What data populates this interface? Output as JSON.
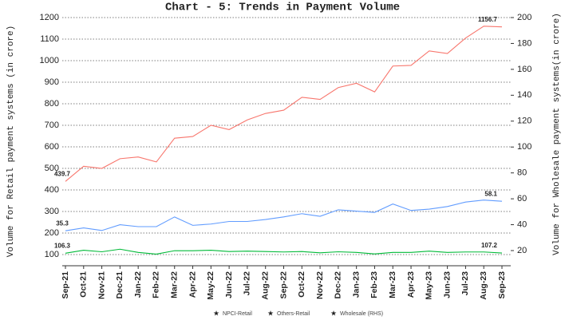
{
  "chart_data": {
    "type": "line",
    "title": "Chart - 5: Trends in Payment Volume",
    "y_label": "Volume for Retail payment systems (in crore)",
    "y2_label": "Volume for Wholesale payment systems(in crore)",
    "categories": [
      "Sep-21",
      "Oct-21",
      "Nov-21",
      "Dec-21",
      "Jan-22",
      "Feb-22",
      "Mar-22",
      "Apr-22",
      "May-22",
      "Jun-22",
      "Jul-22",
      "Aug-22",
      "Sep-22",
      "Oct-22",
      "Nov-22",
      "Dec-22",
      "Jan-23",
      "Feb-23",
      "Mar-23",
      "Apr-23",
      "May-23",
      "Jun-23",
      "Jul-23",
      "Aug-23",
      "Sep-23"
    ],
    "series": [
      {
        "name": "NPCI-Retail",
        "color": "#f8766d",
        "axis": "y",
        "values": [
          439.7,
          510,
          500,
          545,
          553,
          530,
          640,
          648,
          700,
          680,
          725,
          755,
          770,
          830,
          820,
          875,
          895,
          855,
          975,
          978,
          1045,
          1033,
          1105,
          1160,
          1156.7
        ],
        "value_labels": [
          "439.7",
          null,
          null,
          null,
          null,
          null,
          null,
          null,
          null,
          null,
          null,
          null,
          null,
          null,
          null,
          null,
          null,
          null,
          null,
          null,
          null,
          null,
          null,
          null,
          "1156.7"
        ]
      },
      {
        "name": "Others-Retail",
        "color": "#00ba38",
        "axis": "y",
        "values": [
          106.3,
          120,
          113,
          125,
          110,
          102,
          118,
          118,
          120,
          114,
          116,
          114,
          112,
          114,
          108,
          113,
          110,
          103,
          110,
          110,
          116,
          110,
          112,
          112,
          107.2
        ],
        "value_labels": [
          "106.3",
          null,
          null,
          null,
          null,
          null,
          null,
          null,
          null,
          null,
          null,
          null,
          null,
          null,
          null,
          null,
          null,
          null,
          null,
          null,
          null,
          null,
          null,
          null,
          "107.2"
        ]
      },
      {
        "name": "Wholesale (RHS)",
        "color": "#619cff",
        "axis": "y2",
        "values": [
          35.3,
          37.5,
          35.5,
          40,
          38.5,
          38.5,
          46,
          39.5,
          40.5,
          42.5,
          42.5,
          44,
          46,
          48.5,
          46.5,
          51.5,
          50.5,
          49.5,
          56,
          51,
          52,
          54,
          57.5,
          59,
          58.1
        ],
        "value_labels": [
          "35.3",
          null,
          null,
          null,
          null,
          null,
          null,
          null,
          null,
          null,
          null,
          null,
          null,
          null,
          null,
          null,
          null,
          null,
          null,
          null,
          null,
          null,
          null,
          null,
          "58.1"
        ]
      }
    ],
    "ylim": [
      100,
      1200
    ],
    "yticks": [
      100,
      200,
      300,
      400,
      500,
      600,
      700,
      800,
      900,
      1000,
      1100,
      1200
    ],
    "y2lim": [
      20,
      200
    ],
    "y2ticks": [
      20,
      40,
      60,
      80,
      100,
      120,
      140,
      160,
      180,
      200
    ],
    "grid": true,
    "legend": "bottom"
  }
}
